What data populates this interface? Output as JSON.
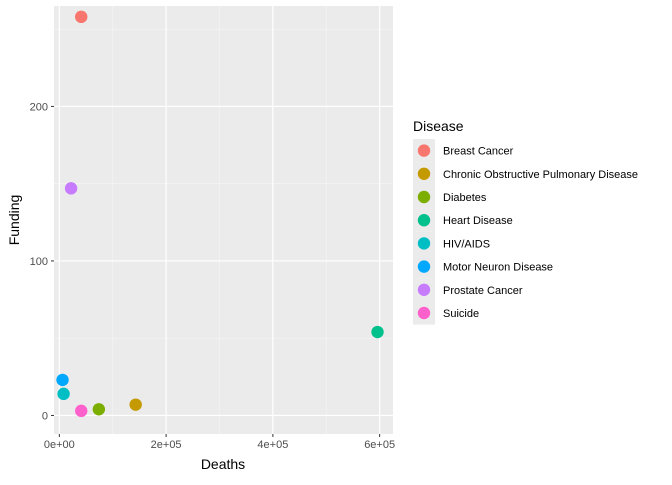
{
  "chart_data": {
    "type": "scatter",
    "xlabel": "Deaths",
    "ylabel": "Funding",
    "xlim": [
      -10000,
      625000
    ],
    "ylim": [
      -12,
      265
    ],
    "x_ticks": [
      0,
      200000,
      400000,
      600000
    ],
    "x_tick_labels": [
      "0e+00",
      "2e+05",
      "4e+05",
      "6e+05"
    ],
    "y_ticks": [
      0,
      100,
      200
    ],
    "y_tick_labels": [
      "0",
      "100",
      "200"
    ],
    "grid": true,
    "legend_title": "Disease",
    "legend_position": "right",
    "series": [
      {
        "name": "Breast Cancer",
        "color": "#F8766D",
        "points": [
          {
            "x": 41000,
            "y": 258
          }
        ]
      },
      {
        "name": "Chronic Obstructive Pulmonary Disease",
        "color": "#C49A00",
        "points": [
          {
            "x": 143000,
            "y": 7
          }
        ]
      },
      {
        "name": "Diabetes",
        "color": "#7CAE00",
        "points": [
          {
            "x": 74000,
            "y": 4
          }
        ]
      },
      {
        "name": "Heart Disease",
        "color": "#00C08B",
        "points": [
          {
            "x": 596000,
            "y": 54
          }
        ]
      },
      {
        "name": "HIV/AIDS",
        "color": "#00BFC4",
        "points": [
          {
            "x": 8000,
            "y": 14
          }
        ]
      },
      {
        "name": "Motor Neuron Disease",
        "color": "#00A9FF",
        "points": [
          {
            "x": 6000,
            "y": 23
          }
        ]
      },
      {
        "name": "Prostate Cancer",
        "color": "#C77CFF",
        "points": [
          {
            "x": 22000,
            "y": 147
          }
        ]
      },
      {
        "name": "Suicide",
        "color": "#FF61CC",
        "points": [
          {
            "x": 41000,
            "y": 3
          }
        ]
      }
    ]
  }
}
